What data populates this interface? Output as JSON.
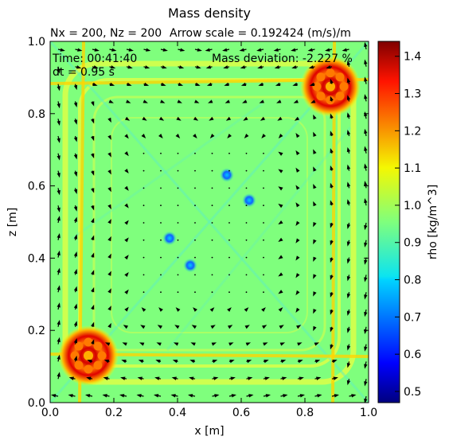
{
  "chart_data": {
    "type": "heatmap",
    "title": "Mass density",
    "subtitle_left": "Nx = 200, Nz = 200",
    "subtitle_right": "Arrow scale = 0.192424 (m/s)/m",
    "annotations": {
      "time": "Time: 00:41:40",
      "dt": "dt = 0.95 s",
      "mass_deviation": "Mass deviation: -2.227 %"
    },
    "xlabel": "x [m]",
    "ylabel": "z [m]",
    "xlim": [
      0.0,
      1.0
    ],
    "ylim": [
      0.0,
      1.0
    ],
    "xticks": [
      "0.0",
      "0.2",
      "0.4",
      "0.6",
      "0.8",
      "1.0"
    ],
    "yticks": [
      "0.0",
      "0.2",
      "0.4",
      "0.6",
      "0.8",
      "1.0"
    ],
    "colorbar": {
      "label": "rho [kg/m^3]",
      "range": [
        0.47,
        1.44
      ],
      "ticks": [
        "0.5",
        "0.6",
        "0.7",
        "0.8",
        "0.9",
        "1.0",
        "1.1",
        "1.2",
        "1.3",
        "1.4"
      ],
      "colormap": "jet"
    },
    "background_value": 0.95,
    "high_density_blobs": [
      {
        "x": 0.88,
        "z": 0.875,
        "rho": 1.3
      },
      {
        "x": 0.12,
        "z": 0.13,
        "rho": 1.3
      }
    ],
    "low_density_spots": [
      {
        "x": 0.555,
        "z": 0.63,
        "rho": 0.8
      },
      {
        "x": 0.625,
        "z": 0.56,
        "rho": 0.8
      },
      {
        "x": 0.375,
        "z": 0.455,
        "rho": 0.8
      },
      {
        "x": 0.44,
        "z": 0.38,
        "rho": 0.8
      }
    ]
  },
  "colors": {
    "background_field": "#7fff7d",
    "jet_low": "#00007f",
    "jet_high": "#7f0000"
  }
}
